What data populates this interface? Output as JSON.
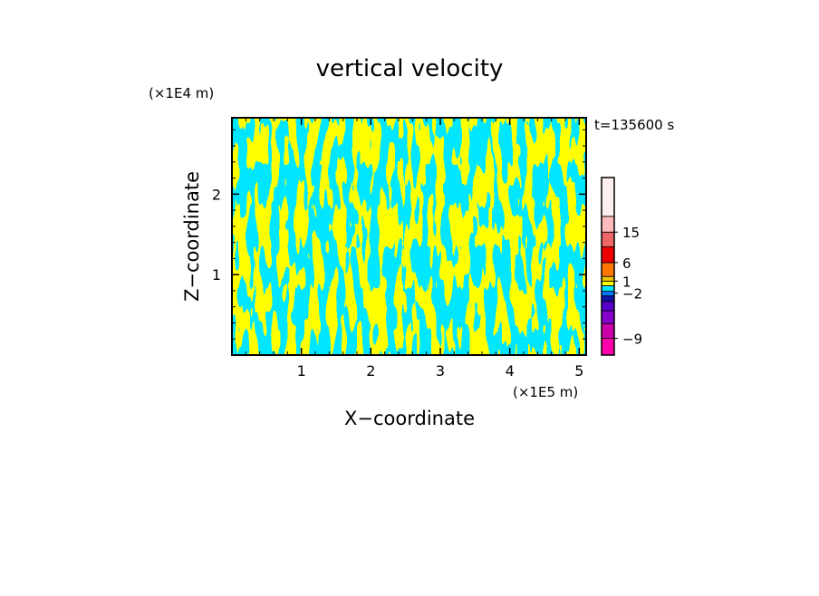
{
  "chart_data": {
    "type": "heatmap",
    "title": "vertical velocity",
    "xlabel": "X−coordinate",
    "ylabel": "Z−coordinate",
    "x_unit": "(×1E5 m)",
    "y_unit": "(×1E4 m)",
    "time_label": "t=135600 s",
    "xlim": [
      0,
      5.1
    ],
    "ylim": [
      0,
      2.95
    ],
    "x_ticks": [
      1,
      2,
      3,
      4,
      5
    ],
    "y_ticks": [
      1,
      2
    ],
    "x_tick_labels": [
      "1",
      "2",
      "3",
      "4",
      "5"
    ],
    "y_tick_labels": [
      "1",
      "2"
    ],
    "field_colors": {
      "positive": "#ffff00",
      "negative": "#00e6ff"
    },
    "colorbar": {
      "labels": [
        {
          "value": 15,
          "text": "15"
        },
        {
          "value": 6,
          "text": "6"
        },
        {
          "value": 1,
          "text": "1"
        },
        {
          "value": -2,
          "text": "−2"
        },
        {
          "value": -9,
          "text": "−9"
        }
      ],
      "colors": [
        "#ff00aa",
        "#cc00aa",
        "#8800cc",
        "#5500cc",
        "#1111aa",
        "#0077ff",
        "#00e6ff",
        "#ffff00",
        "#f0c800",
        "#ff7700",
        "#ee0000",
        "#ee6666",
        "#ffbbbb",
        "#ffeeee"
      ]
    }
  }
}
